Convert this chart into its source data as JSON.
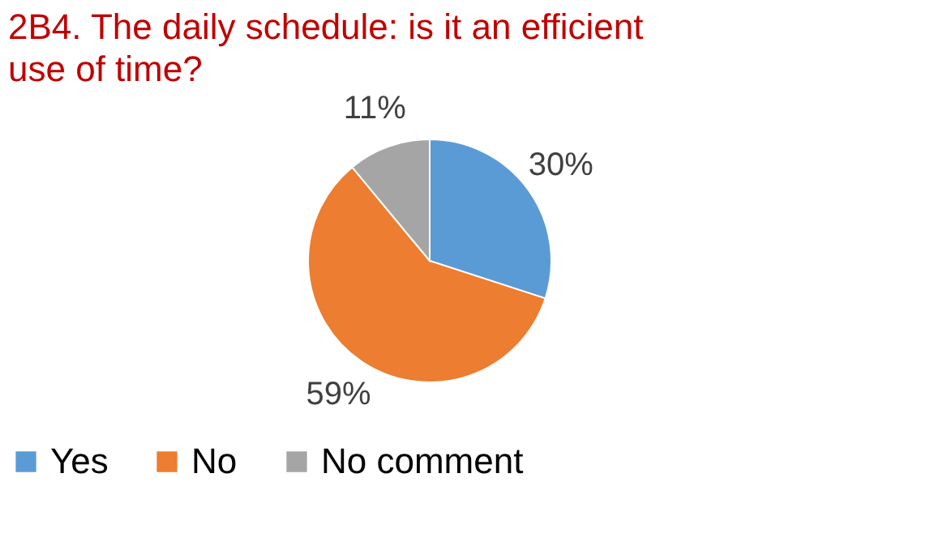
{
  "chart_data": {
    "type": "pie",
    "title": "2B4. The daily schedule: is it an efficient use of time?",
    "categories": [
      "Yes",
      "No",
      "No comment"
    ],
    "values": [
      30,
      59,
      11
    ],
    "colors": [
      "#5b9bd5",
      "#ed7d31",
      "#a5a5a5"
    ],
    "value_labels": [
      "30%",
      "59%",
      "11%"
    ],
    "legend": "bottom"
  }
}
